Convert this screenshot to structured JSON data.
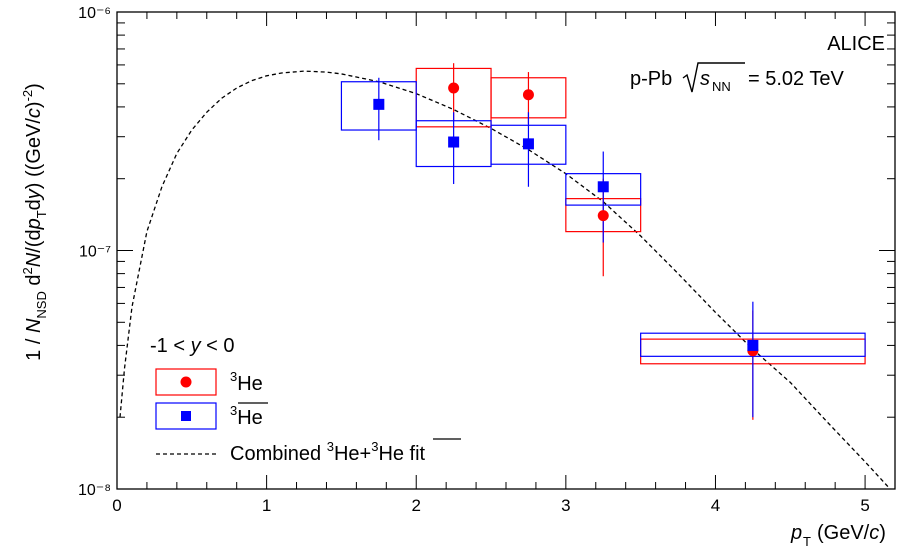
{
  "chart_data": {
    "type": "scatter",
    "title": "",
    "xlabel": "p_T (GeV/c)",
    "ylabel": "1 / N_NSD d²N/(dp_T dy) ((GeV/c)⁻²)",
    "xlim": [
      0,
      5.2
    ],
    "ylim": [
      1e-08,
      1e-06
    ],
    "yscale": "log",
    "x_ticks": [
      0,
      1,
      2,
      3,
      4,
      5
    ],
    "y_ticks": [
      {
        "value": 1e-08,
        "label": "10⁻⁸"
      },
      {
        "value": 1e-07,
        "label": "10⁻⁷"
      },
      {
        "value": 1e-06,
        "label": "10⁻⁶"
      }
    ],
    "annotations": [
      "ALICE",
      "p-Pb √s_NN = 5.02 TeV"
    ],
    "legend": {
      "placement": "bottom-left",
      "header": "-1 < y < 0",
      "entries": [
        "³He",
        "³He (anti)",
        "Combined ³He+³He fit"
      ]
    },
    "series": [
      {
        "name": "³He",
        "marker": "circle",
        "color": "#ff0000",
        "points": [
          {
            "x": 2.25,
            "y": 4.8e-07,
            "xlow": 2.0,
            "xhigh": 2.5,
            "ylow": 3.3e-07,
            "yhigh": 5.8e-07,
            "stat_low": 3.5e-07,
            "stat_high": 6.1e-07
          },
          {
            "x": 2.75,
            "y": 4.5e-07,
            "xlow": 2.5,
            "xhigh": 3.0,
            "ylow": 3.6e-07,
            "yhigh": 5.3e-07,
            "stat_low": 3.4e-07,
            "stat_high": 5.6e-07
          },
          {
            "x": 3.25,
            "y": 1.4e-07,
            "xlow": 3.0,
            "xhigh": 3.5,
            "ylow": 1.2e-07,
            "yhigh": 1.65e-07,
            "stat_low": 7.8e-08,
            "stat_high": 2e-07
          },
          {
            "x": 4.25,
            "y": 3.8e-08,
            "xlow": 3.5,
            "xhigh": 5.0,
            "ylow": 3.35e-08,
            "yhigh": 4.25e-08,
            "stat_low": 1.95e-08,
            "stat_high": 5.6e-08
          }
        ]
      },
      {
        "name": "³He (anti)",
        "marker": "square",
        "color": "#0000ff",
        "points": [
          {
            "x": 1.75,
            "y": 4.1e-07,
            "xlow": 1.5,
            "xhigh": 2.0,
            "ylow": 3.2e-07,
            "yhigh": 5.1e-07,
            "stat_low": 2.9e-07,
            "stat_high": 5.3e-07
          },
          {
            "x": 2.25,
            "y": 2.85e-07,
            "xlow": 2.0,
            "xhigh": 2.5,
            "ylow": 2.25e-07,
            "yhigh": 3.5e-07,
            "stat_low": 1.9e-07,
            "stat_high": 3.8e-07
          },
          {
            "x": 2.75,
            "y": 2.8e-07,
            "xlow": 2.5,
            "xhigh": 3.0,
            "ylow": 2.3e-07,
            "yhigh": 3.35e-07,
            "stat_low": 1.85e-07,
            "stat_high": 3.8e-07
          },
          {
            "x": 3.25,
            "y": 1.85e-07,
            "xlow": 3.0,
            "xhigh": 3.5,
            "ylow": 1.55e-07,
            "yhigh": 2.1e-07,
            "stat_low": 1.08e-07,
            "stat_high": 2.6e-07
          },
          {
            "x": 4.25,
            "y": 4e-08,
            "xlow": 3.5,
            "xhigh": 5.0,
            "ylow": 3.6e-08,
            "yhigh": 4.5e-08,
            "stat_low": 2e-08,
            "stat_high": 6.1e-08
          }
        ]
      },
      {
        "name": "Combined ³He+³He fit",
        "type": "line",
        "style": "dashed",
        "color": "#000000",
        "points": [
          {
            "x": 0.02,
            "y": 2e-08
          },
          {
            "x": 0.05,
            "y": 3.2e-08
          },
          {
            "x": 0.1,
            "y": 5.8e-08
          },
          {
            "x": 0.2,
            "y": 1.2e-07
          },
          {
            "x": 0.3,
            "y": 1.85e-07
          },
          {
            "x": 0.4,
            "y": 2.55e-07
          },
          {
            "x": 0.5,
            "y": 3.2e-07
          },
          {
            "x": 0.6,
            "y": 3.8e-07
          },
          {
            "x": 0.7,
            "y": 4.35e-07
          },
          {
            "x": 0.8,
            "y": 4.8e-07
          },
          {
            "x": 0.9,
            "y": 5.15e-07
          },
          {
            "x": 1.0,
            "y": 5.4e-07
          },
          {
            "x": 1.1,
            "y": 5.55e-07
          },
          {
            "x": 1.25,
            "y": 5.65e-07
          },
          {
            "x": 1.4,
            "y": 5.6e-07
          },
          {
            "x": 1.5,
            "y": 5.5e-07
          },
          {
            "x": 1.75,
            "y": 5.1e-07
          },
          {
            "x": 2.0,
            "y": 4.55e-07
          },
          {
            "x": 2.25,
            "y": 3.9e-07
          },
          {
            "x": 2.5,
            "y": 3.25e-07
          },
          {
            "x": 2.75,
            "y": 2.65e-07
          },
          {
            "x": 3.0,
            "y": 2.1e-07
          },
          {
            "x": 3.25,
            "y": 1.6e-07
          },
          {
            "x": 3.5,
            "y": 1.15e-07
          },
          {
            "x": 3.75,
            "y": 8e-08
          },
          {
            "x": 4.0,
            "y": 5.5e-08
          },
          {
            "x": 4.25,
            "y": 3.85e-08
          },
          {
            "x": 4.5,
            "y": 2.8e-08
          },
          {
            "x": 4.75,
            "y": 1.9e-08
          },
          {
            "x": 5.0,
            "y": 1.3e-08
          },
          {
            "x": 5.2,
            "y": 9.5e-09
          }
        ]
      }
    ]
  }
}
